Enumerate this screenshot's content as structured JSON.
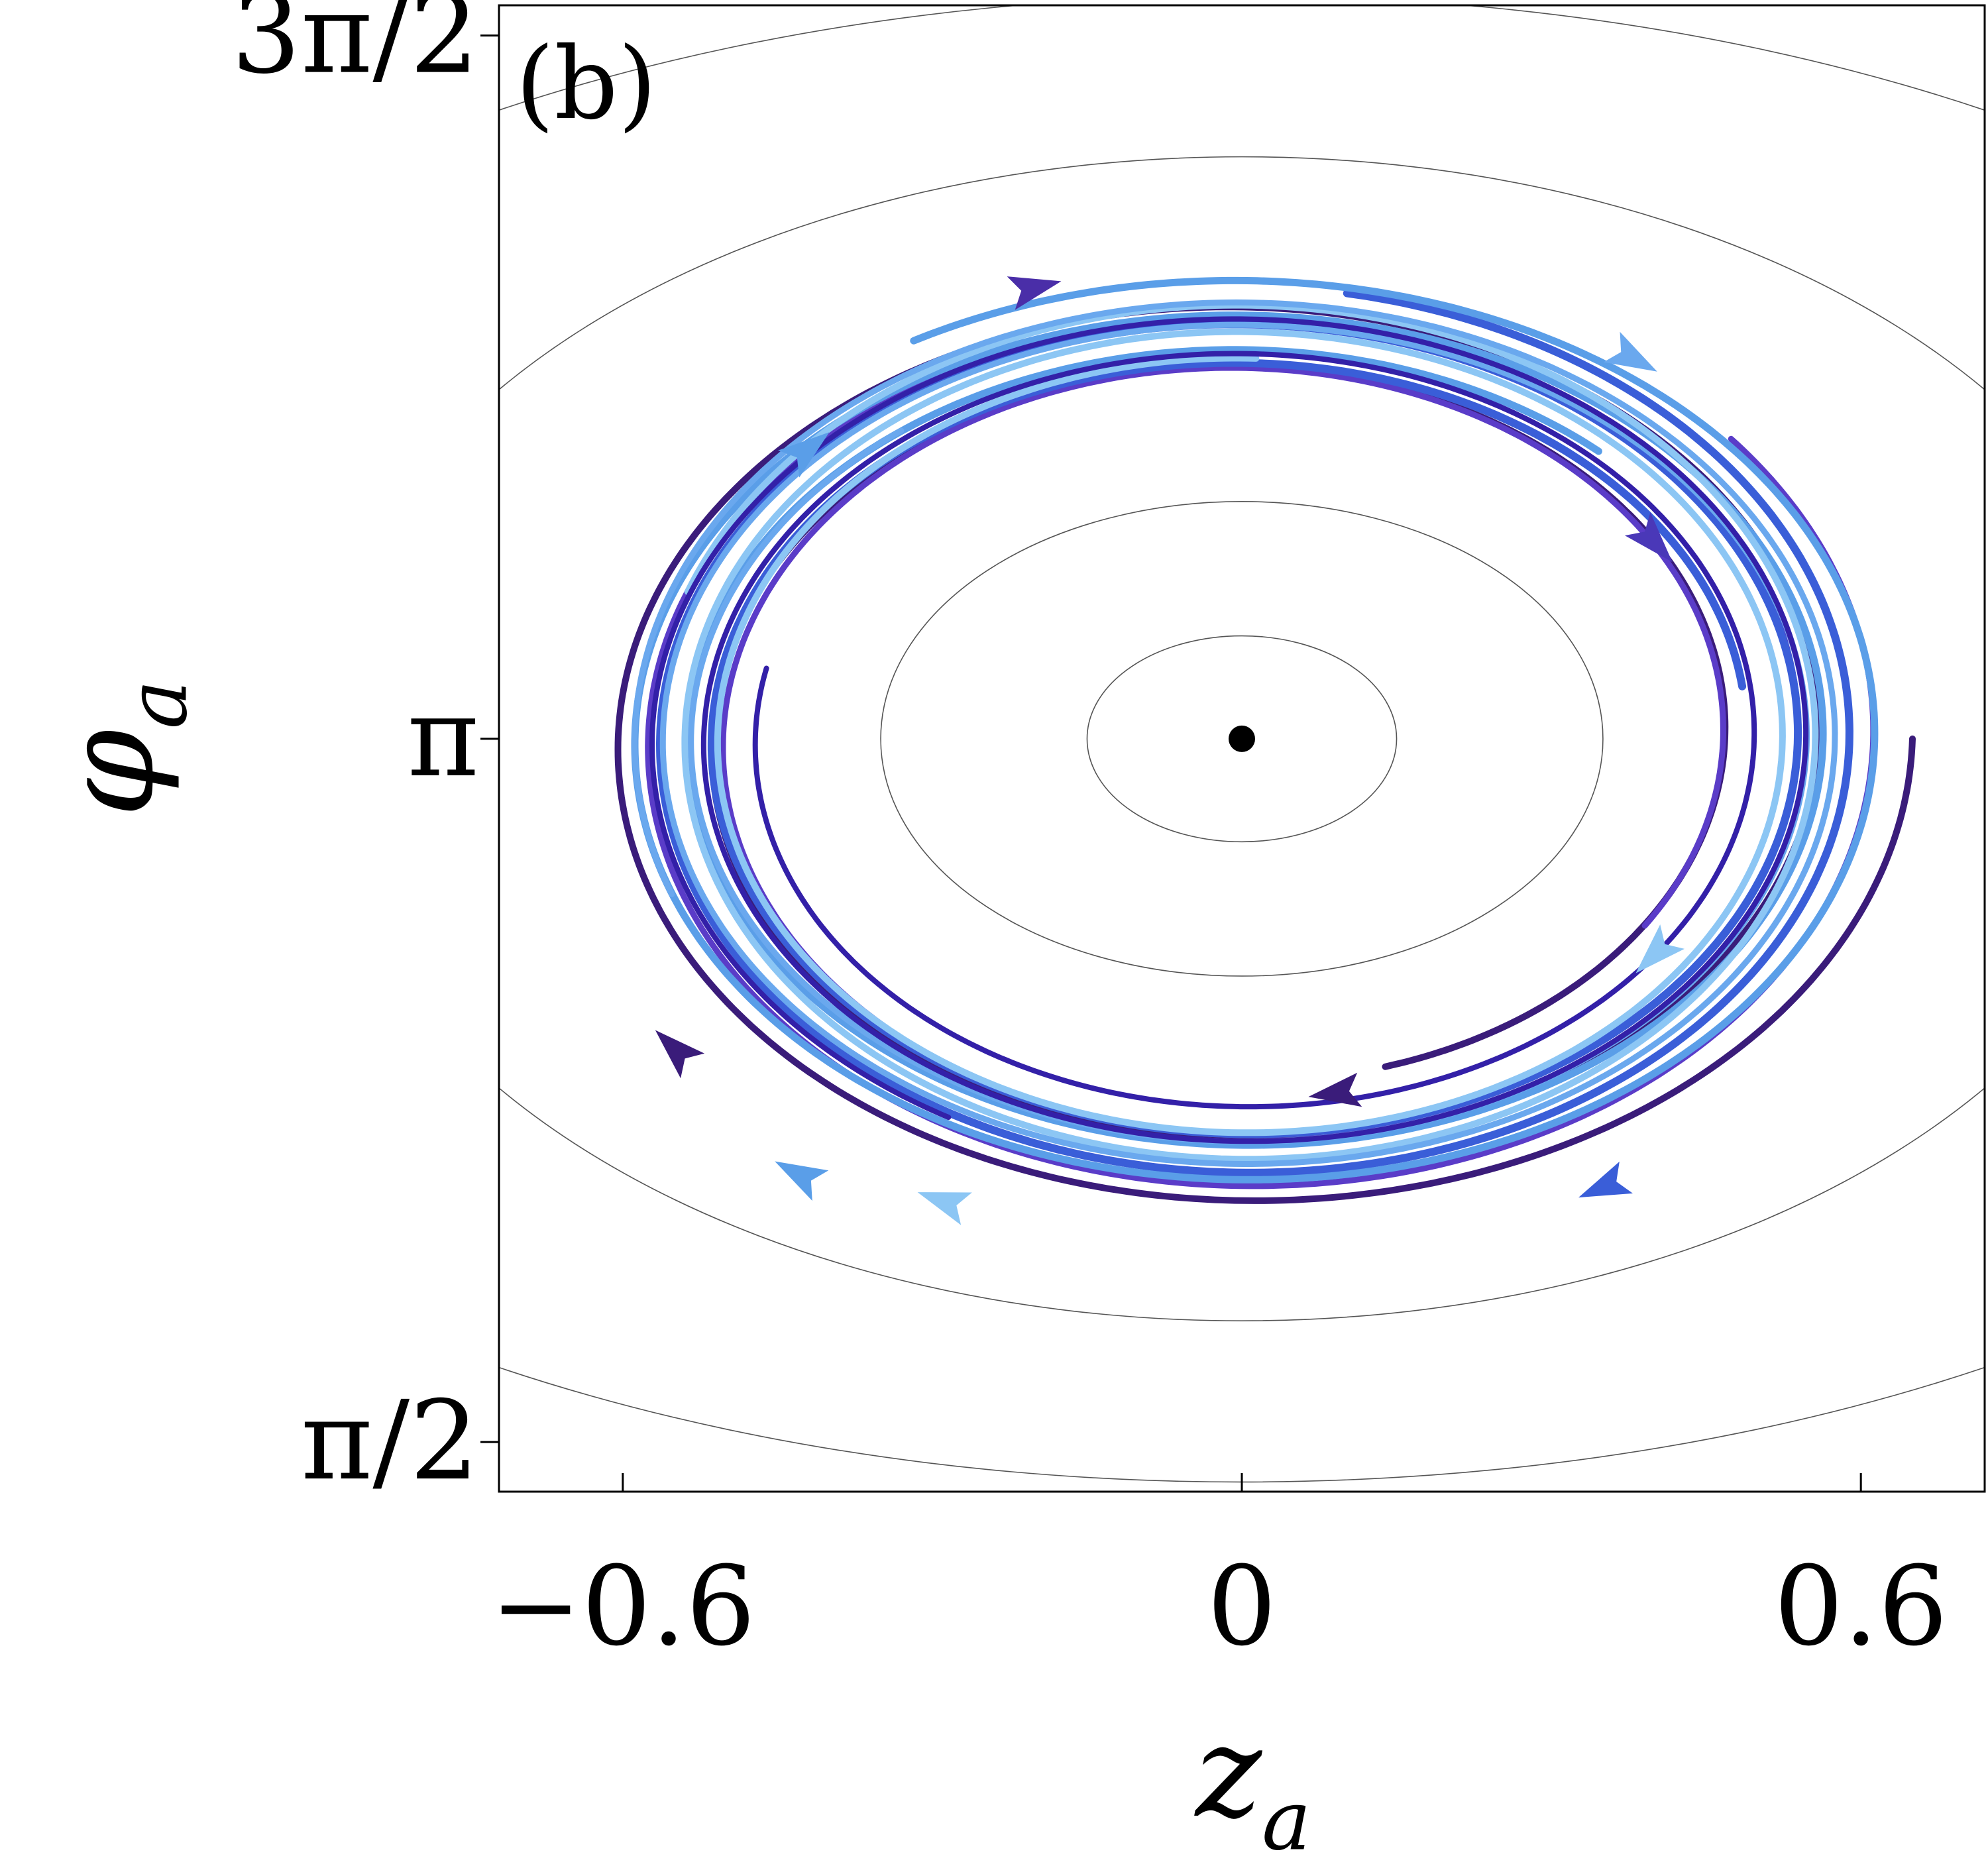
{
  "chart_data": {
    "type": "line",
    "panel_label": "(b)",
    "xlabel": {
      "main": "z",
      "sub": "a"
    },
    "ylabel": {
      "main": "φ",
      "sub": "a"
    },
    "xlim": [
      -0.72,
      0.72
    ],
    "ylim": [
      1.46,
      4.78
    ],
    "x_ticks": [
      {
        "value": -0.6,
        "label": "−0.6"
      },
      {
        "value": 0,
        "label": "0"
      },
      {
        "value": 0.6,
        "label": "0.6"
      }
    ],
    "y_ticks": [
      {
        "value": 1.5708,
        "label": "π/2"
      },
      {
        "value": 3.1416,
        "label": "π"
      },
      {
        "value": 4.7124,
        "label": "3π/2"
      }
    ],
    "grid": false,
    "fixed_point": {
      "x": 0,
      "y": 3.1416
    },
    "contours": [
      {
        "z_amp": 0.15,
        "phi_amp": 0.23
      },
      {
        "z_amp": 0.35,
        "phi_amp": 0.53
      },
      {
        "z_amp": 0.9,
        "phi_amp": 1.3
      },
      {
        "z_amp": 1.35,
        "phi_amp": 1.66
      }
    ],
    "trajectories": [
      {
        "color": "#3a1c7a",
        "width": 10,
        "z_amp": [
          0.65,
          0.45
        ],
        "phi_amp": [
          1.065,
          0.77
        ]
      },
      {
        "color": "#5a3cc8",
        "width": 9,
        "z_amp": [
          0.62,
          0.46
        ],
        "phi_amp": [
          1.04,
          0.79
        ]
      },
      {
        "color": "#3a5ed8",
        "width": 12,
        "z_amp": [
          0.6,
          0.49
        ],
        "phi_amp": [
          1.01,
          0.82
        ]
      },
      {
        "color": "#5a9ee8",
        "width": 11,
        "z_amp": [
          0.63,
          0.52
        ],
        "phi_amp": [
          1.03,
          0.86
        ]
      },
      {
        "color": "#8cc6f4",
        "width": 10,
        "z_amp": [
          0.57,
          0.5
        ],
        "phi_amp": [
          0.98,
          0.85
        ]
      },
      {
        "color": "#6aa8ee",
        "width": 9,
        "z_amp": [
          0.59,
          0.53
        ],
        "phi_amp": [
          0.99,
          0.88
        ]
      },
      {
        "color": "#3320a8",
        "width": 8,
        "z_amp": [
          0.58,
          0.47
        ],
        "phi_amp": [
          0.97,
          0.8
        ]
      }
    ],
    "arrows": [
      {
        "x": -0.2,
        "y": 4.15,
        "dir": -1,
        "color": "#4a2ea8"
      },
      {
        "x": 0.38,
        "y": 3.99,
        "dir": -1,
        "color": "#6aa8ee"
      },
      {
        "x": -0.42,
        "y": 3.79,
        "dir": 1,
        "color": "#5a9ee8"
      },
      {
        "x": 0.4,
        "y": 3.58,
        "dir": -1,
        "color": "#4a38b8"
      },
      {
        "x": -0.55,
        "y": 2.45,
        "dir": 1,
        "color": "#3a1c7a"
      },
      {
        "x": -0.43,
        "y": 2.17,
        "dir": 1,
        "color": "#5a9ee8"
      },
      {
        "x": 0.09,
        "y": 2.35,
        "dir": -1,
        "color": "#3a1c7a"
      },
      {
        "x": 0.4,
        "y": 2.66,
        "dir": -1,
        "color": "#8cc6f4"
      },
      {
        "x": -0.29,
        "y": 2.11,
        "dir": 1,
        "color": "#8cc6f4"
      },
      {
        "x": 0.35,
        "y": 2.14,
        "dir": 1,
        "color": "#3a5ed8"
      }
    ]
  }
}
